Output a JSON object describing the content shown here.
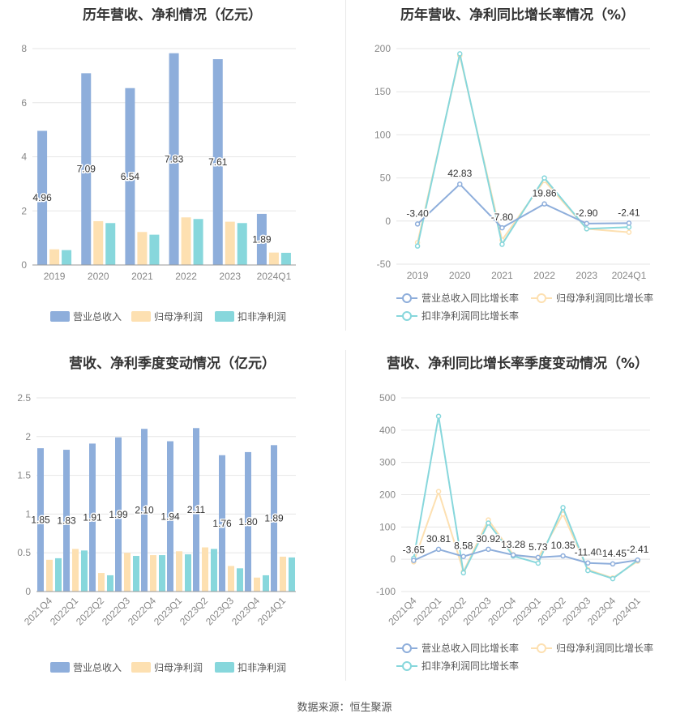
{
  "colors": {
    "revenue": "#8eaedb",
    "net_profit": "#fde0b1",
    "deducted_profit": "#87d7dc",
    "axis_text": "#888888",
    "grid": "#e6e6e6"
  },
  "source_text": "数据来源：恒生聚源",
  "chart_data": [
    {
      "type": "bar",
      "title": "历年营收、净利情况（亿元）",
      "categories": [
        "2019",
        "2020",
        "2021",
        "2022",
        "2023",
        "2024Q1"
      ],
      "ylim": [
        0,
        8
      ],
      "yticks": [
        "0",
        "2",
        "4",
        "6",
        "8"
      ],
      "series": [
        {
          "name": "营业总收入",
          "values": [
            4.96,
            7.09,
            6.54,
            7.83,
            7.61,
            1.89
          ],
          "labels": [
            "4.96",
            "7.09",
            "6.54",
            "7.83",
            "7.61",
            "1.89"
          ]
        },
        {
          "name": "归母净利润",
          "values": [
            0.58,
            1.62,
            1.22,
            1.76,
            1.6,
            0.46
          ]
        },
        {
          "name": "扣非净利润",
          "values": [
            0.55,
            1.55,
            1.12,
            1.7,
            1.55,
            0.45
          ]
        }
      ],
      "legend": "bottom"
    },
    {
      "type": "line",
      "title": "历年营收、净利同比增长率情况（%）",
      "categories": [
        "2019",
        "2020",
        "2021",
        "2022",
        "2023",
        "2024Q1"
      ],
      "ylim": [
        -50,
        200
      ],
      "yticks": [
        "-50",
        "0",
        "50",
        "100",
        "150",
        "200"
      ],
      "series": [
        {
          "name": "营业总收入同比增长率",
          "values": [
            -3.4,
            42.83,
            -7.8,
            19.86,
            -2.9,
            -2.41
          ],
          "labels": [
            "-3.40",
            "42.83",
            "-7.80",
            "19.86",
            "-2.90",
            "-2.41"
          ]
        },
        {
          "name": "归母净利润同比增长率",
          "values": [
            -25,
            192,
            -22,
            47,
            -9,
            -13
          ]
        },
        {
          "name": "扣非净利润同比增长率",
          "values": [
            -29,
            194,
            -27,
            50,
            -9,
            -7
          ]
        }
      ],
      "legend": "bottom"
    },
    {
      "type": "bar",
      "title": "营收、净利季度变动情况（亿元）",
      "categories": [
        "2021Q4",
        "2022Q1",
        "2022Q2",
        "2022Q3",
        "2022Q4",
        "2023Q1",
        "2023Q2",
        "2023Q3",
        "2023Q4",
        "2024Q1"
      ],
      "ylim": [
        0,
        2.5
      ],
      "yticks": [
        "0",
        "0.5",
        "1",
        "1.5",
        "2",
        "2.5"
      ],
      "series": [
        {
          "name": "营业总收入",
          "values": [
            1.85,
            1.83,
            1.91,
            1.99,
            2.1,
            1.94,
            2.11,
            1.76,
            1.8,
            1.89
          ],
          "labels": [
            "1.85",
            "1.83",
            "1.91",
            "1.99",
            "2.10",
            "1.94",
            "2.11",
            "1.76",
            "1.80",
            "1.89"
          ]
        },
        {
          "name": "归母净利润",
          "values": [
            0.41,
            0.55,
            0.24,
            0.5,
            0.47,
            0.52,
            0.57,
            0.33,
            0.18,
            0.45
          ]
        },
        {
          "name": "扣非净利润",
          "values": [
            0.43,
            0.53,
            0.21,
            0.46,
            0.47,
            0.48,
            0.55,
            0.3,
            0.21,
            0.44
          ]
        }
      ],
      "legend": "bottom"
    },
    {
      "type": "line",
      "title": "营收、净利同比增长率季度变动情况（%）",
      "categories": [
        "2021Q4",
        "2022Q1",
        "2022Q2",
        "2022Q3",
        "2022Q4",
        "2023Q1",
        "2023Q2",
        "2023Q3",
        "2023Q4",
        "2024Q1"
      ],
      "ylim": [
        -100,
        500
      ],
      "yticks": [
        "-100",
        "0",
        "100",
        "200",
        "300",
        "400",
        "500"
      ],
      "series": [
        {
          "name": "营业总收入同比增长率",
          "values": [
            -3.65,
            30.81,
            8.58,
            30.92,
            13.28,
            5.73,
            10.35,
            -11.4,
            -14.45,
            -2.41
          ],
          "labels": [
            "-3.65",
            "30.81",
            "8.58",
            "30.92",
            "13.28",
            "5.73",
            "10.35",
            "-11.40",
            "-14.45",
            "-2.41"
          ]
        },
        {
          "name": "归母净利润同比增长率",
          "values": [
            -8,
            210,
            -38,
            122,
            14,
            4,
            140,
            -32,
            -58,
            -6
          ]
        },
        {
          "name": "扣非净利润同比增长率",
          "values": [
            3,
            443,
            -42,
            112,
            10,
            -12,
            160,
            -35,
            -60,
            -3
          ]
        }
      ],
      "legend": "bottom"
    }
  ]
}
